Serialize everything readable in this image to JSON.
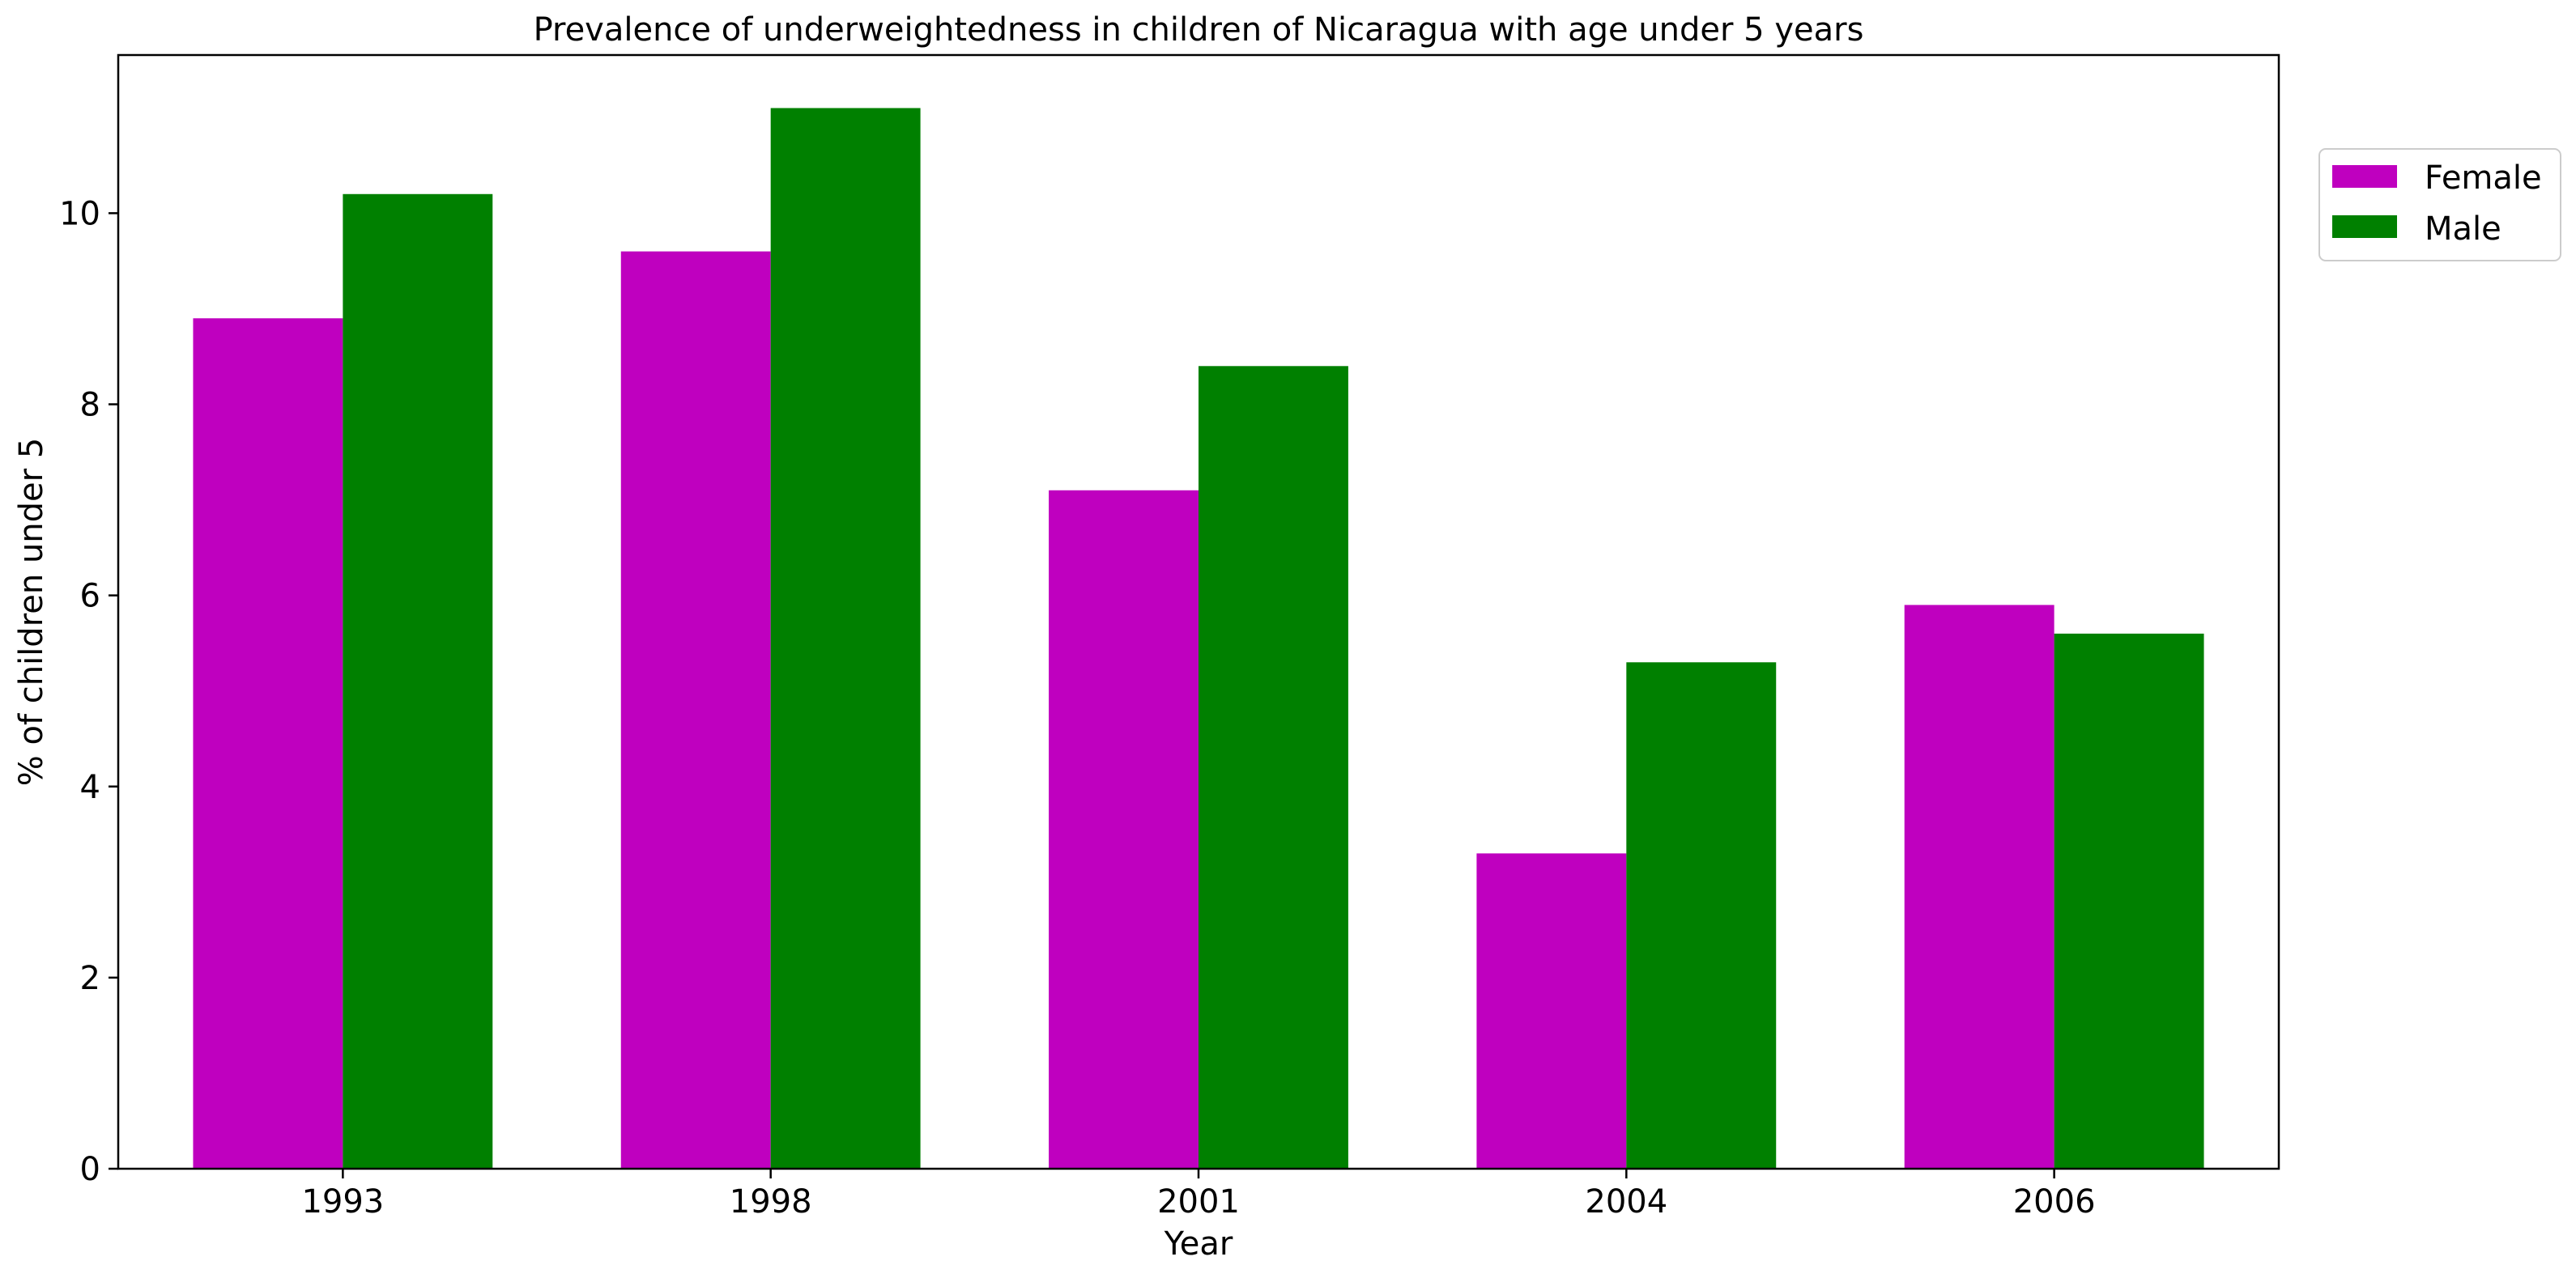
{
  "chart_data": {
    "type": "bar",
    "title": "Prevalence of underweightedness in children of Nicaragua with age under 5 years",
    "xlabel": "Year",
    "ylabel": "% of children under 5",
    "categories": [
      "1993",
      "1998",
      "2001",
      "2004",
      "2006"
    ],
    "series": [
      {
        "name": "Female",
        "color": "#bf00bf",
        "values": [
          8.9,
          9.6,
          7.1,
          3.3,
          5.9
        ]
      },
      {
        "name": "Male",
        "color": "#008000",
        "values": [
          10.2,
          11.1,
          8.4,
          5.3,
          5.6
        ]
      }
    ],
    "ylim": [
      0,
      11.655
    ],
    "yticks": [
      0,
      2,
      4,
      6,
      8,
      10
    ],
    "grid": false,
    "legend": {
      "position": "outside-right-top"
    }
  }
}
